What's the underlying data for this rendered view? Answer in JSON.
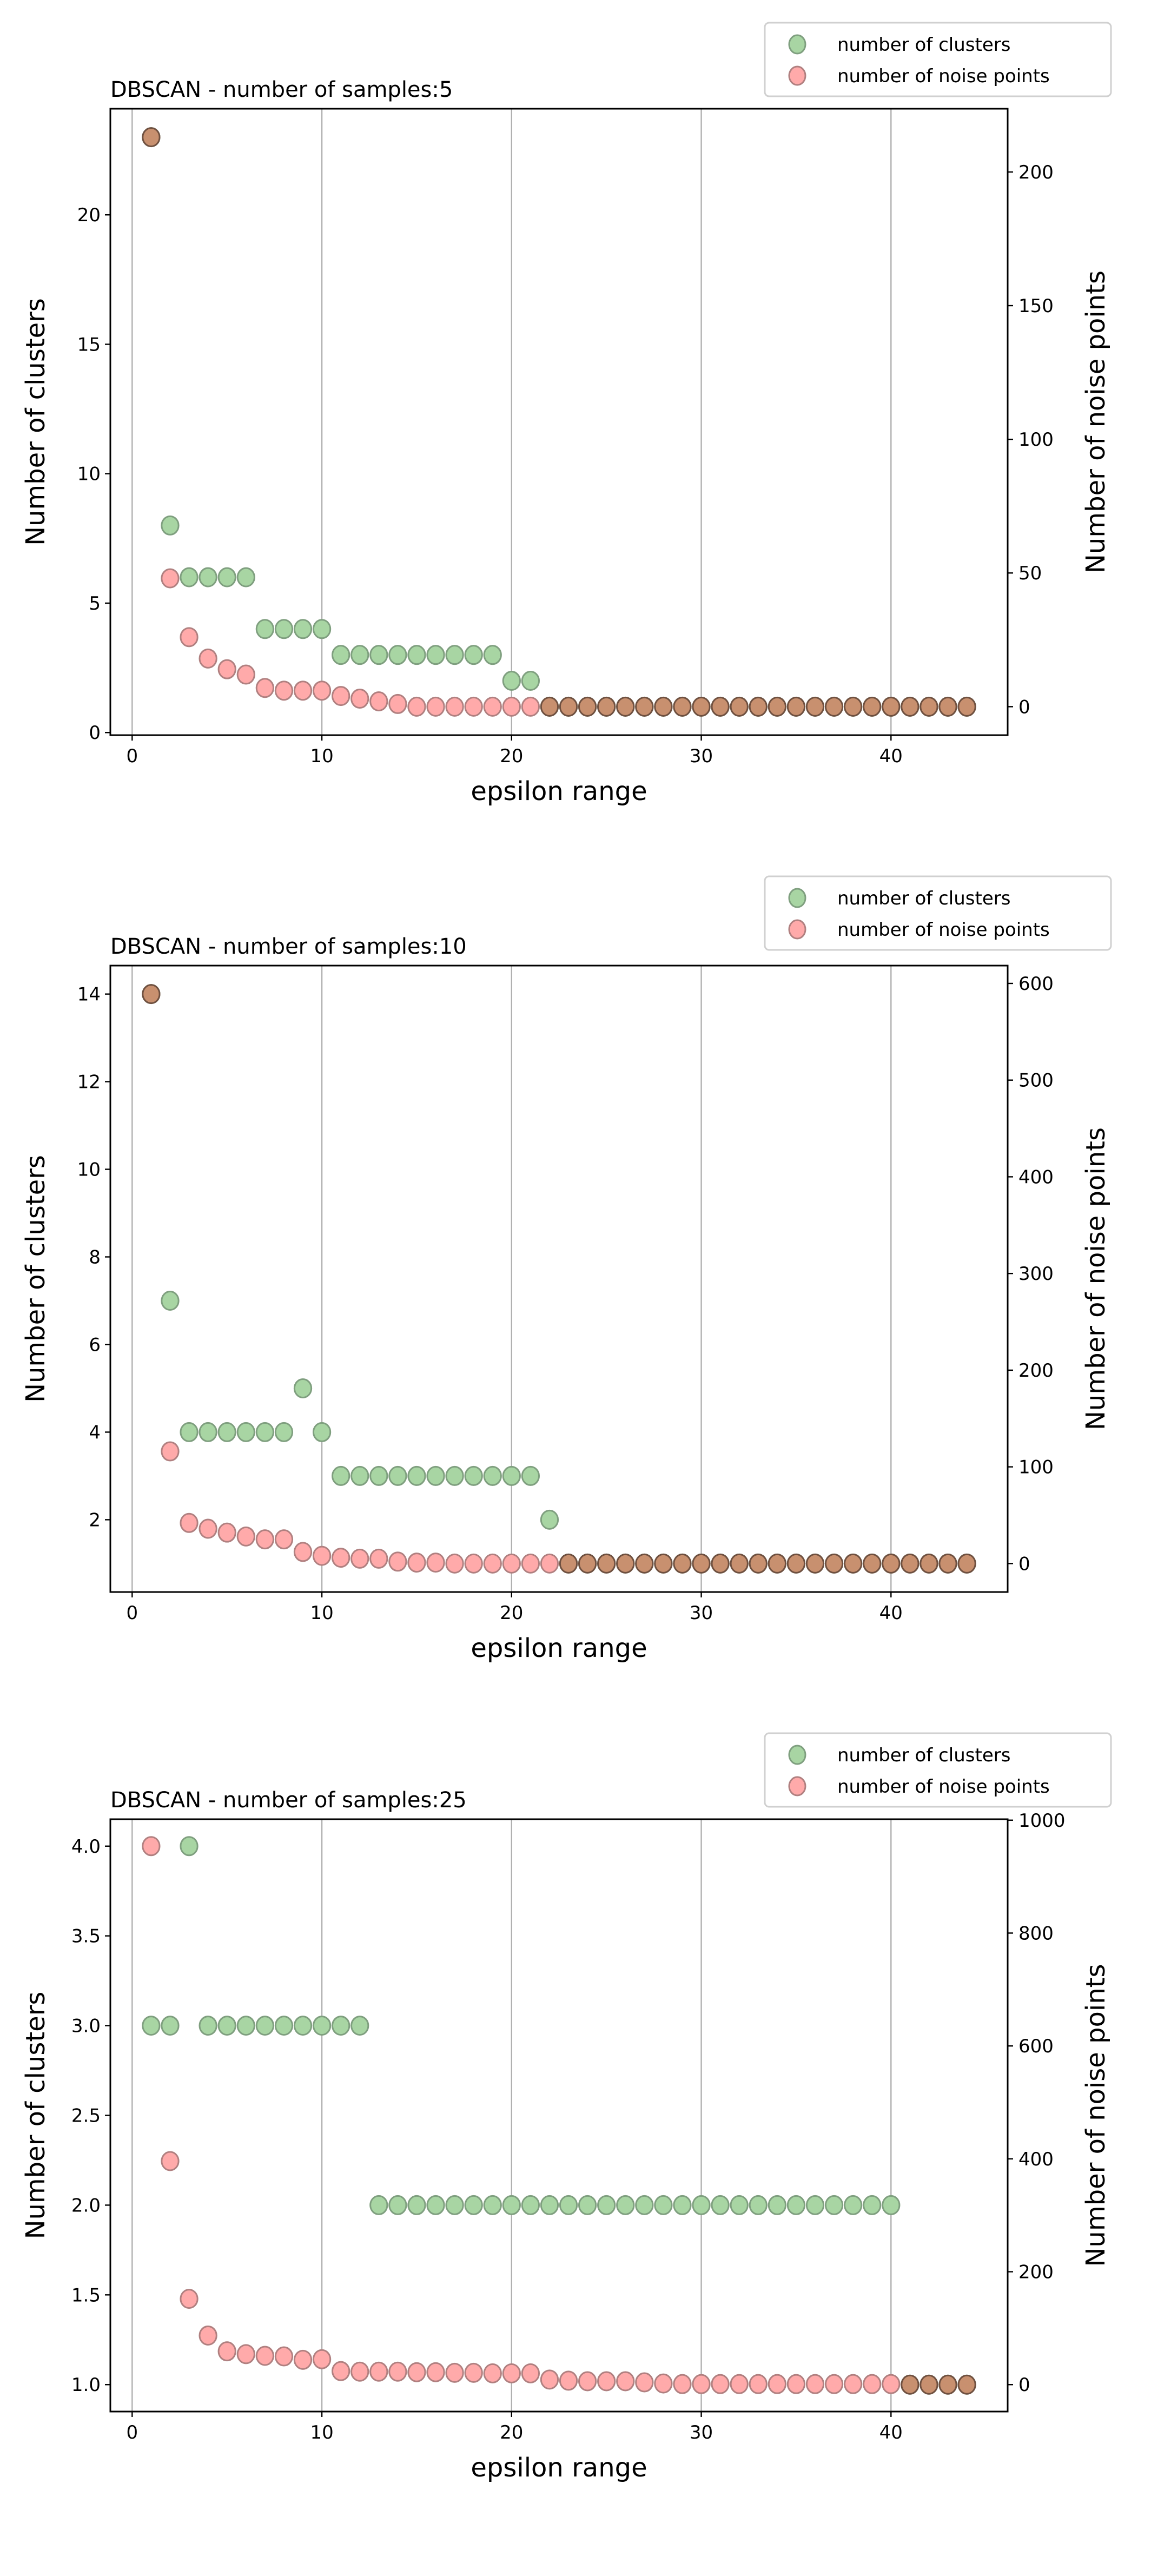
{
  "chart_data": [
    {
      "type": "scatter",
      "title": "DBSCAN - number of samples:5",
      "xlabel": "epsilon range",
      "ylabel_left": "Number of clusters",
      "ylabel_right": "Number of noise points",
      "xlim": [
        -1.15,
        46.15
      ],
      "ylim_left": [
        -0.1,
        24.1
      ],
      "ylim_right": [
        -10.65,
        223.65
      ],
      "xticks": [
        0,
        10,
        20,
        30,
        40
      ],
      "yticks_left": [
        0,
        5,
        10,
        15,
        20
      ],
      "yticks_right": [
        0,
        50,
        100,
        150,
        200
      ],
      "grid": "vertical",
      "legend_placement": "above-right",
      "x": [
        1,
        2,
        3,
        4,
        5,
        6,
        7,
        8,
        9,
        10,
        11,
        12,
        13,
        14,
        15,
        16,
        17,
        18,
        19,
        20,
        21,
        22,
        23,
        24,
        25,
        26,
        27,
        28,
        29,
        30,
        31,
        32,
        33,
        34,
        35,
        36,
        37,
        38,
        39,
        40,
        41,
        42,
        43,
        44
      ],
      "series": [
        {
          "name": "number of clusters",
          "axis": "left",
          "color": "#a8d5a3",
          "values": [
            23,
            8,
            6,
            6,
            6,
            6,
            4,
            4,
            4,
            4,
            3,
            3,
            3,
            3,
            3,
            3,
            3,
            3,
            3,
            2,
            2,
            1,
            1,
            1,
            1,
            1,
            1,
            1,
            1,
            1,
            1,
            1,
            1,
            1,
            1,
            1,
            1,
            1,
            1,
            1,
            1,
            1,
            1,
            1
          ]
        },
        {
          "name": "number of noise points",
          "axis": "right",
          "color": "#ffaaaa",
          "values": [
            213,
            48,
            26,
            18,
            14,
            12,
            7,
            6,
            6,
            6,
            4,
            3,
            2,
            1,
            0,
            0,
            0,
            0,
            0,
            0,
            0,
            0,
            0,
            0,
            0,
            0,
            0,
            0,
            0,
            0,
            0,
            0,
            0,
            0,
            0,
            0,
            0,
            0,
            0,
            0,
            0,
            0,
            0,
            0
          ]
        }
      ]
    },
    {
      "type": "scatter",
      "title": "DBSCAN - number of samples:10",
      "xlabel": "epsilon range",
      "ylabel_left": "Number of clusters",
      "ylabel_right": "Number of noise points",
      "xlim": [
        -1.15,
        46.15
      ],
      "ylim_left": [
        0.35,
        14.65
      ],
      "ylim_right": [
        -29.45,
        618.45
      ],
      "xticks": [
        0,
        10,
        20,
        30,
        40
      ],
      "yticks_left": [
        2,
        4,
        6,
        8,
        10,
        12,
        14
      ],
      "yticks_right": [
        0,
        100,
        200,
        300,
        400,
        500,
        600
      ],
      "grid": "vertical",
      "legend_placement": "above-right",
      "x": [
        1,
        2,
        3,
        4,
        5,
        6,
        7,
        8,
        9,
        10,
        11,
        12,
        13,
        14,
        15,
        16,
        17,
        18,
        19,
        20,
        21,
        22,
        23,
        24,
        25,
        26,
        27,
        28,
        29,
        30,
        31,
        32,
        33,
        34,
        35,
        36,
        37,
        38,
        39,
        40,
        41,
        42,
        43,
        44
      ],
      "series": [
        {
          "name": "number of clusters",
          "axis": "left",
          "color": "#a8d5a3",
          "values": [
            14,
            7,
            4,
            4,
            4,
            4,
            4,
            4,
            5,
            4,
            3,
            3,
            3,
            3,
            3,
            3,
            3,
            3,
            3,
            3,
            3,
            2,
            1,
            1,
            1,
            1,
            1,
            1,
            1,
            1,
            1,
            1,
            1,
            1,
            1,
            1,
            1,
            1,
            1,
            1,
            1,
            1,
            1,
            1
          ]
        },
        {
          "name": "number of noise points",
          "axis": "right",
          "color": "#ffaaaa",
          "values": [
            589,
            116,
            42,
            36,
            32,
            28,
            25,
            25,
            12,
            8,
            6,
            5,
            5,
            2,
            1,
            1,
            0,
            0,
            0,
            0,
            0,
            0,
            0,
            0,
            0,
            0,
            0,
            0,
            0,
            0,
            0,
            0,
            0,
            0,
            0,
            0,
            0,
            0,
            0,
            0,
            0,
            0,
            0,
            0
          ]
        }
      ]
    },
    {
      "type": "scatter",
      "title": "DBSCAN - number of samples:25",
      "xlabel": "epsilon range",
      "ylabel_left": "Number of clusters",
      "ylabel_right": "Number of noise points",
      "xlim": [
        -1.15,
        46.15
      ],
      "ylim_left": [
        0.85,
        4.15
      ],
      "ylim_right": [
        -47.7,
        1001.7
      ],
      "xticks": [
        0,
        10,
        20,
        30,
        40
      ],
      "yticks_left": [
        "1.0",
        "1.5",
        "2.0",
        "2.5",
        "3.0",
        "3.5",
        "4.0"
      ],
      "yticks_right": [
        0,
        200,
        400,
        600,
        800,
        1000
      ],
      "grid": "vertical",
      "legend_placement": "above-right",
      "x": [
        1,
        2,
        3,
        4,
        5,
        6,
        7,
        8,
        9,
        10,
        11,
        12,
        13,
        14,
        15,
        16,
        17,
        18,
        19,
        20,
        21,
        22,
        23,
        24,
        25,
        26,
        27,
        28,
        29,
        30,
        31,
        32,
        33,
        34,
        35,
        36,
        37,
        38,
        39,
        40,
        41,
        42,
        43,
        44
      ],
      "series": [
        {
          "name": "number of clusters",
          "axis": "left",
          "color": "#a8d5a3",
          "values": [
            3,
            3,
            4,
            3,
            3,
            3,
            3,
            3,
            3,
            3,
            3,
            3,
            2,
            2,
            2,
            2,
            2,
            2,
            2,
            2,
            2,
            2,
            2,
            2,
            2,
            2,
            2,
            2,
            2,
            2,
            2,
            2,
            2,
            2,
            2,
            2,
            2,
            2,
            2,
            2,
            1,
            1,
            1,
            1
          ]
        },
        {
          "name": "number of noise points",
          "axis": "right",
          "color": "#ffaaaa",
          "values": [
            954,
            396,
            152,
            87,
            59,
            54,
            51,
            50,
            44,
            45,
            24,
            23,
            23,
            23,
            22,
            22,
            21,
            21,
            20,
            20,
            20,
            9,
            7,
            6,
            6,
            6,
            4,
            2,
            1,
            1,
            1,
            1,
            1,
            1,
            1,
            1,
            1,
            1,
            1,
            1,
            0,
            0,
            0,
            0
          ]
        }
      ]
    }
  ],
  "overlap_color": "#c8906f"
}
